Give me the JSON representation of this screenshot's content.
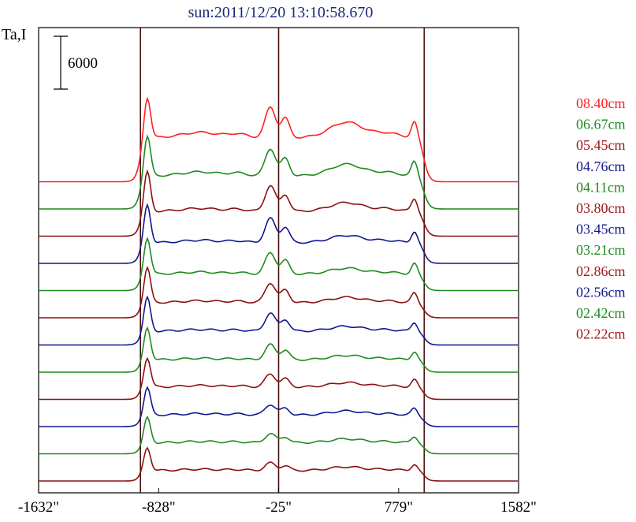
{
  "chart_data": {
    "type": "line",
    "title": "sun:2011/12/20 13:10:58.670",
    "ylabel": "Ta,I",
    "xlabel": "",
    "xlim": [
      -1632,
      1582
    ],
    "x_ticks": [
      "-1632\"",
      "-828\"",
      "-25\"",
      "779\"",
      "1582\""
    ],
    "x_tick_values": [
      -1632,
      -828,
      -25,
      779,
      1582
    ],
    "vertical_markers": [
      -950,
      -25,
      950
    ],
    "scale_bar_label": "6000",
    "grid": false,
    "legend_position": "right",
    "series": [
      {
        "name": "08.40cm",
        "color": "#ff2020",
        "peak": 3.0,
        "center_peak": 2.0,
        "west_peak": 1.0,
        "plateau": 1.6,
        "offset": 11.0
      },
      {
        "name": "06.67cm",
        "color": "#1e8a1e",
        "peak": 2.6,
        "center_peak": 1.8,
        "west_peak": 0.9,
        "plateau": 1.2,
        "offset": 10.0
      },
      {
        "name": "05.45cm",
        "color": "#8b1010",
        "peak": 2.3,
        "center_peak": 1.7,
        "west_peak": 0.8,
        "plateau": 0.9,
        "offset": 9.0
      },
      {
        "name": "04.76cm",
        "color": "#101890",
        "peak": 2.1,
        "center_peak": 1.6,
        "west_peak": 0.7,
        "plateau": 0.75,
        "offset": 8.0
      },
      {
        "name": "04.11cm",
        "color": "#1e8a1e",
        "peak": 1.9,
        "center_peak": 1.4,
        "west_peak": 0.65,
        "plateau": 0.6,
        "offset": 7.0
      },
      {
        "name": "03.80cm",
        "color": "#8b1010",
        "peak": 1.8,
        "center_peak": 1.3,
        "west_peak": 0.6,
        "plateau": 0.55,
        "offset": 6.0
      },
      {
        "name": "03.45cm",
        "color": "#101890",
        "peak": 1.7,
        "center_peak": 1.2,
        "west_peak": 0.55,
        "plateau": 0.5,
        "offset": 5.0
      },
      {
        "name": "03.21cm",
        "color": "#1e8a1e",
        "peak": 1.6,
        "center_peak": 1.0,
        "west_peak": 0.5,
        "plateau": 0.45,
        "offset": 4.0
      },
      {
        "name": "02.86cm",
        "color": "#8b1010",
        "peak": 1.5,
        "center_peak": 0.85,
        "west_peak": 0.45,
        "plateau": 0.45,
        "offset": 3.0
      },
      {
        "name": "02.56cm",
        "color": "#101890",
        "peak": 1.4,
        "center_peak": 0.7,
        "west_peak": 0.42,
        "plateau": 0.42,
        "offset": 2.0
      },
      {
        "name": "02.42cm",
        "color": "#1e8a1e",
        "peak": 1.3,
        "center_peak": 0.6,
        "west_peak": 0.4,
        "plateau": 0.4,
        "offset": 1.0
      },
      {
        "name": "02.22cm",
        "color": "#8b1010",
        "peak": 1.2,
        "center_peak": 0.5,
        "west_peak": 0.38,
        "plateau": 0.38,
        "offset": 0.0
      }
    ]
  }
}
